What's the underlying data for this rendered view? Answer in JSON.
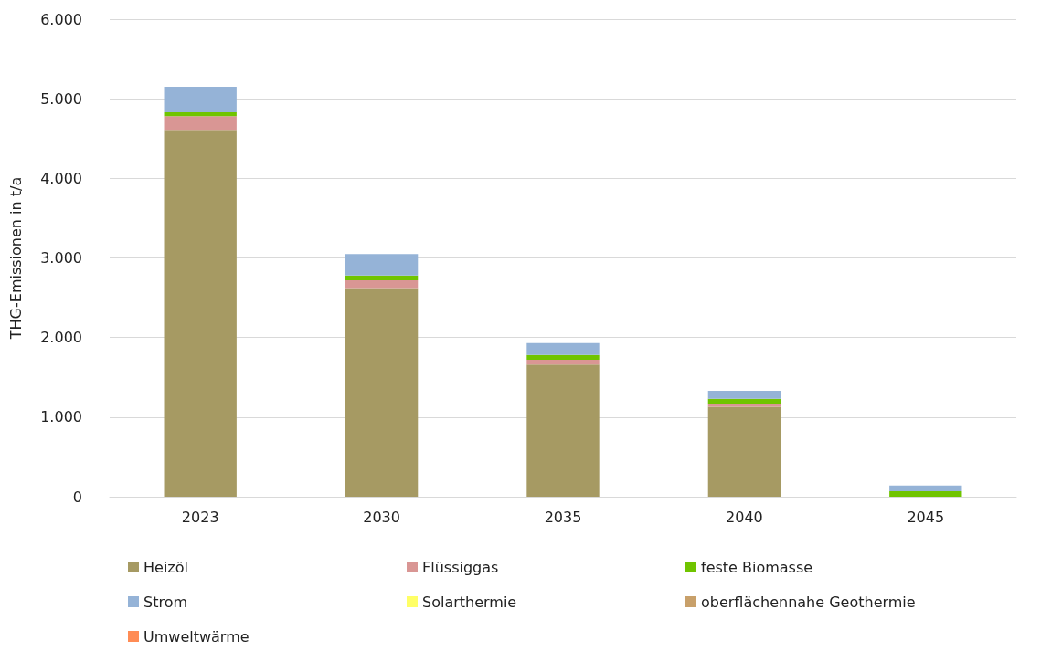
{
  "chart_data": {
    "type": "bar",
    "stacked": true,
    "ylabel": "THG-Emissionen in t/a",
    "categories": [
      "2023",
      "2030",
      "2035",
      "2040",
      "2045"
    ],
    "series": [
      {
        "name": "Heizöl",
        "color": "#a69a63",
        "values": [
          4610,
          2620,
          1660,
          1130,
          0
        ]
      },
      {
        "name": "Flüssiggas",
        "color": "#d99694",
        "values": [
          170,
          100,
          60,
          40,
          0
        ]
      },
      {
        "name": "feste Biomasse",
        "color": "#70c400",
        "values": [
          50,
          60,
          60,
          60,
          70
        ]
      },
      {
        "name": "Strom",
        "color": "#95b3d7",
        "values": [
          320,
          270,
          150,
          100,
          70
        ]
      },
      {
        "name": "Solarthermie",
        "color": "#ffff66",
        "values": [
          0,
          0,
          0,
          0,
          0
        ]
      },
      {
        "name": "oberflächennahe Geothermie",
        "color": "#c8a06a",
        "values": [
          0,
          0,
          0,
          0,
          0
        ]
      },
      {
        "name": "Umweltwärme",
        "color": "#ff8c55",
        "values": [
          0,
          0,
          0,
          0,
          0
        ]
      }
    ],
    "ylim": [
      0,
      6000
    ],
    "yticks": [
      {
        "value": 0,
        "label": "0"
      },
      {
        "value": 1000,
        "label": "1.000"
      },
      {
        "value": 2000,
        "label": "2.000"
      },
      {
        "value": 3000,
        "label": "3.000"
      },
      {
        "value": 4000,
        "label": "4.000"
      },
      {
        "value": 5000,
        "label": "5.000"
      },
      {
        "value": 6000,
        "label": "6.000"
      }
    ],
    "grid": "y",
    "legend": "bottom"
  }
}
